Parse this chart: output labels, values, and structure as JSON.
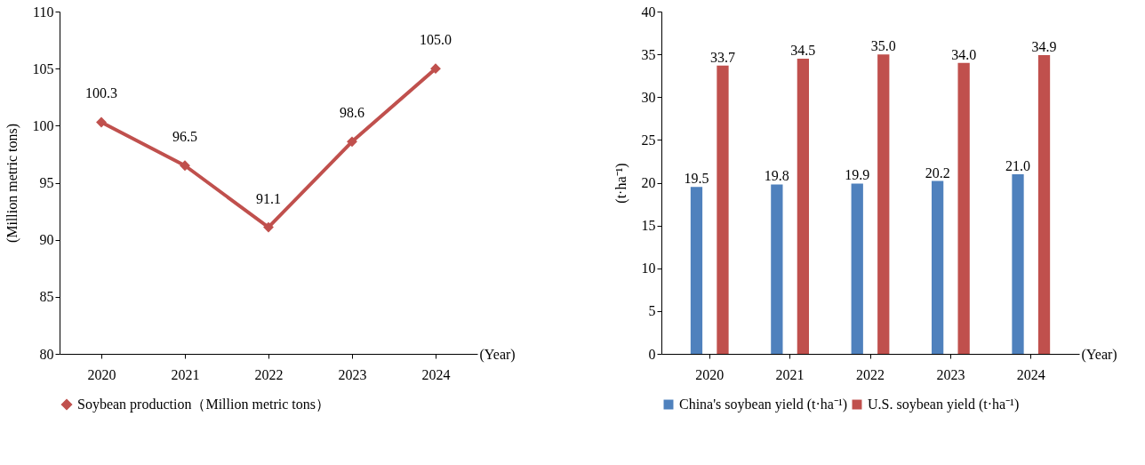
{
  "chart_data": [
    {
      "type": "line",
      "xlabel": "(Year)",
      "ylabel": "(Million metric tons)",
      "categories": [
        "2020",
        "2021",
        "2022",
        "2023",
        "2024"
      ],
      "series": [
        {
          "name": "Soybean production（Million metric tons）",
          "color": "#c0504d",
          "values": [
            100.3,
            96.5,
            91.1,
            98.6,
            105.0
          ],
          "value_labels": [
            "100.3",
            "96.5",
            "91.1",
            "98.6",
            "105.0"
          ]
        }
      ],
      "ylim": [
        80,
        110
      ],
      "yticks": [
        80,
        85,
        90,
        95,
        100,
        105,
        110
      ],
      "marker": "diamond",
      "line_style": "solid",
      "legend": "bottom"
    },
    {
      "type": "bar",
      "xlabel": "(Year)",
      "ylabel": "(t·ha⁻¹)",
      "categories": [
        "2020",
        "2021",
        "2022",
        "2023",
        "2024"
      ],
      "series": [
        {
          "name": "China's soybean yield (t·ha⁻¹)",
          "color": "#4f81bd",
          "values": [
            19.5,
            19.8,
            19.9,
            20.2,
            21.0
          ],
          "value_labels": [
            "19.5",
            "19.8",
            "19.9",
            "20.2",
            "21.0"
          ]
        },
        {
          "name": "U.S. soybean yield (t·ha⁻¹)",
          "color": "#c0504d",
          "values": [
            33.7,
            34.5,
            35.0,
            34.0,
            34.9
          ],
          "value_labels": [
            "33.7",
            "34.5",
            "35.0",
            "34.0",
            "34.9"
          ]
        }
      ],
      "ylim": [
        0,
        40
      ],
      "yticks": [
        0,
        5,
        10,
        15,
        20,
        25,
        30,
        35,
        40
      ],
      "legend": "bottom"
    }
  ]
}
